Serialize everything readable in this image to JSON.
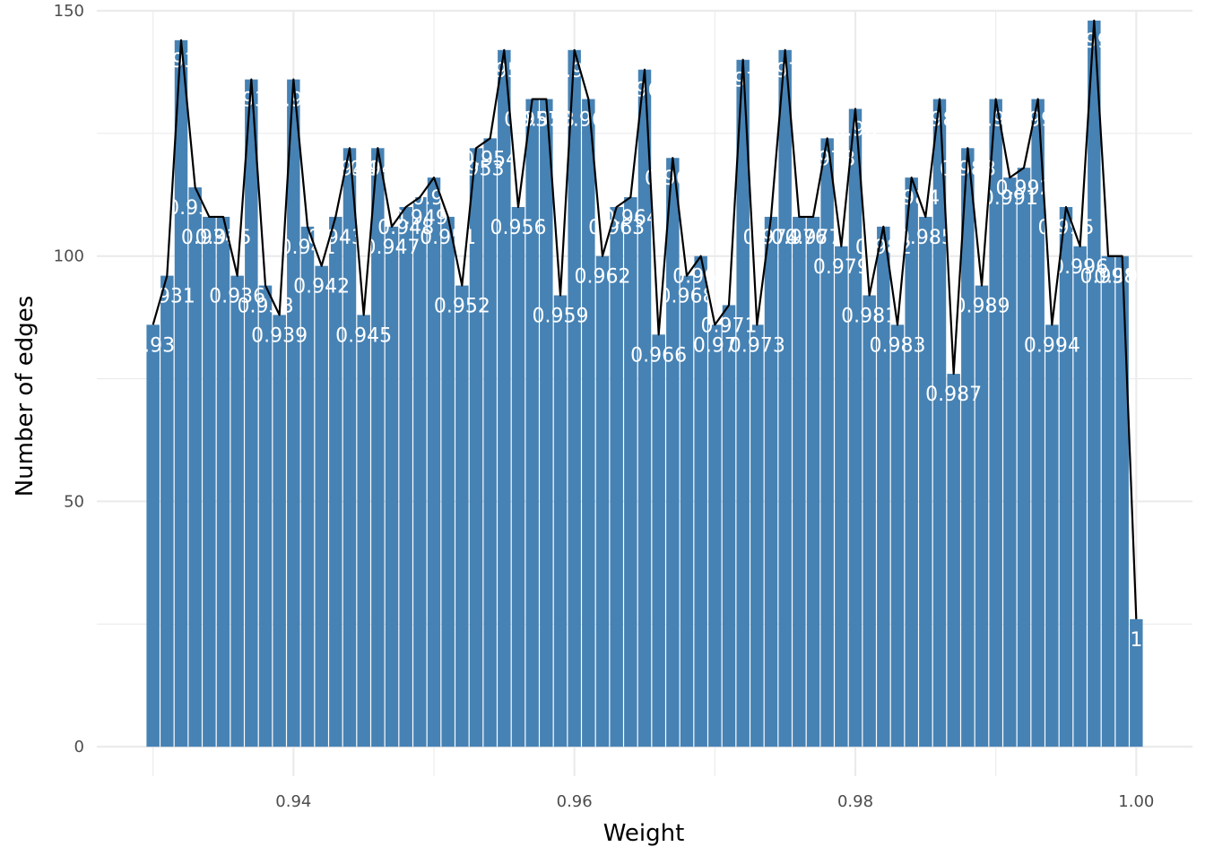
{
  "chart_data": {
    "type": "bar",
    "title": "",
    "xlabel": "Weight",
    "ylabel": "Number of edges",
    "xlim": [
      0.926,
      1.004
    ],
    "ylim": [
      -6,
      150
    ],
    "x_ticks": [
      0.94,
      0.96,
      0.98,
      1.0
    ],
    "x_tick_labels": [
      "0.94",
      "0.96",
      "0.98",
      "1.00"
    ],
    "y_ticks": [
      0,
      50,
      100,
      150
    ],
    "y_tick_labels": [
      "0",
      "50",
      "100",
      "150"
    ],
    "grid": true,
    "legend": "none",
    "colors": {
      "bar": "#4682B4",
      "line": "#000000",
      "bar_label": "#ffffff",
      "grid": "#ebebeb"
    },
    "categories": [
      "0.93",
      "0.931",
      "0.932",
      "0.933",
      "0.934",
      "0.935",
      "0.936",
      "0.937",
      "0.938",
      "0.939",
      "0.94",
      "0.941",
      "0.942",
      "0.943",
      "0.944",
      "0.945",
      "0.946",
      "0.947",
      "0.948",
      "0.949",
      "0.95",
      "0.951",
      "0.952",
      "0.953",
      "0.954",
      "0.955",
      "0.956",
      "0.957",
      "0.958",
      "0.959",
      "0.96",
      "0.961",
      "0.962",
      "0.963",
      "0.964",
      "0.965",
      "0.966",
      "0.967",
      "0.968",
      "0.969",
      "0.97",
      "0.971",
      "0.972",
      "0.973",
      "0.974",
      "0.975",
      "0.976",
      "0.977",
      "0.978",
      "0.979",
      "0.98",
      "0.981",
      "0.982",
      "0.983",
      "0.984",
      "0.985",
      "0.986",
      "0.987",
      "0.988",
      "0.989",
      "0.99",
      "0.991",
      "0.992",
      "0.993",
      "0.994",
      "0.995",
      "0.996",
      "0.997",
      "0.998",
      "0.999",
      "1"
    ],
    "series": [
      {
        "x": [
          0.93,
          0.931,
          0.932,
          0.933,
          0.934,
          0.935,
          0.936,
          0.937,
          0.938,
          0.939,
          0.94,
          0.941,
          0.942,
          0.943,
          0.944,
          0.945,
          0.946,
          0.947,
          0.948,
          0.949,
          0.95,
          0.951,
          0.952,
          0.953,
          0.954,
          0.955,
          0.956,
          0.957,
          0.958,
          0.959,
          0.96,
          0.961,
          0.962,
          0.963,
          0.964,
          0.965,
          0.966,
          0.967,
          0.968,
          0.969,
          0.97,
          0.971,
          0.972,
          0.973,
          0.974,
          0.975,
          0.976,
          0.977,
          0.978,
          0.979,
          0.98,
          0.981,
          0.982,
          0.983,
          0.984,
          0.985,
          0.986,
          0.987,
          0.988,
          0.989,
          0.99,
          0.991,
          0.992,
          0.993,
          0.994,
          0.995,
          0.996,
          0.997,
          0.998,
          0.999,
          1.0
        ],
        "values": [
          86,
          96,
          144,
          114,
          108,
          108,
          96,
          136,
          94,
          88,
          136,
          106,
          98,
          108,
          122,
          88,
          122,
          106,
          110,
          112,
          116,
          108,
          94,
          122,
          124,
          142,
          110,
          132,
          132,
          92,
          142,
          132,
          100,
          110,
          112,
          138,
          84,
          120,
          96,
          100,
          86,
          90,
          140,
          86,
          108,
          142,
          108,
          108,
          124,
          102,
          130,
          92,
          106,
          86,
          116,
          108,
          132,
          76,
          122,
          94,
          132,
          116,
          118,
          132,
          86,
          110,
          102,
          148,
          100,
          100,
          26
        ]
      }
    ]
  }
}
